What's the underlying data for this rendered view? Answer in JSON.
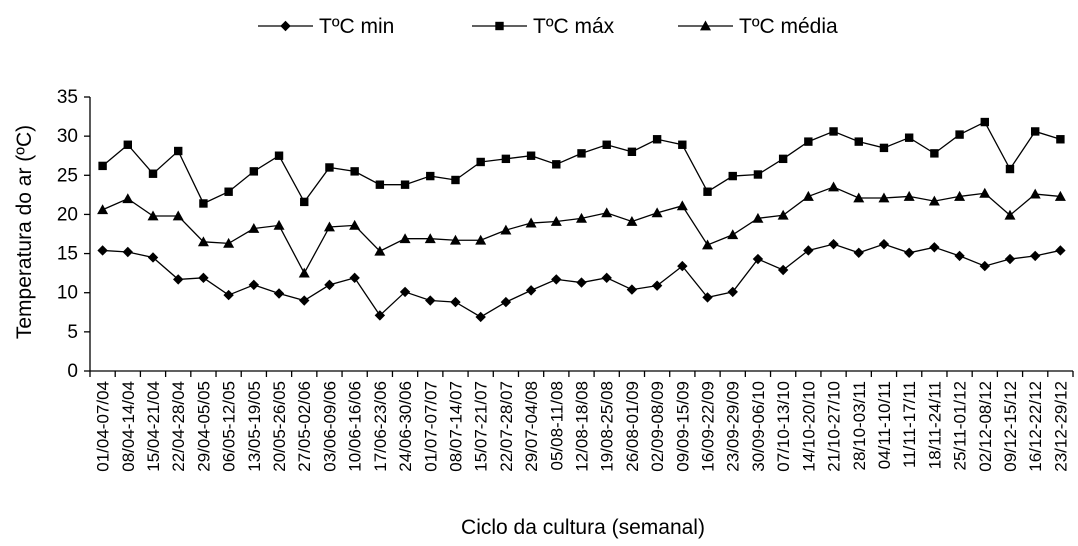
{
  "chart_data": {
    "type": "line",
    "xlabel": "Ciclo da cultura (semanal)",
    "ylabel": "Temperatura do ar (ºC)",
    "ylim": [
      0,
      35
    ],
    "yticks": [
      0,
      5,
      10,
      15,
      20,
      25,
      30,
      35
    ],
    "grid": false,
    "legend_position": "top",
    "categories": [
      "01/04-07/04",
      "08/04-14/04",
      "15/04-21/04",
      "22/04-28/04",
      "29/04-05/05",
      "06/05-12/05",
      "13/05-19/05",
      "20/05-26/05",
      "27/05-02/06",
      "03/06-09/06",
      "10/06-16/06",
      "17/06-23/06",
      "24/06-30/06",
      "01/07-07/07",
      "08/07-14/07",
      "15/07-21/07",
      "22/07-28/07",
      "29/07-04/08",
      "05/08-11/08",
      "12/08-18/08",
      "19/08-25/08",
      "26/08-01/09",
      "02/09-08/09",
      "09/09-15/09",
      "16/09-22/09",
      "23/09-29/09",
      "30/09-06/10",
      "07/10-13/10",
      "14/10-20/10",
      "21/10-27/10",
      "28/10-03/11",
      "04/11-10/11",
      "11/11-17/11",
      "18/11-24/11",
      "25/11-01/12",
      "02/12-08/12",
      "09/12-15/12",
      "16/12-22/12",
      "23/12-29/12"
    ],
    "series": [
      {
        "name": "TºC min",
        "marker": "diamond",
        "values": [
          15.4,
          15.2,
          14.5,
          11.7,
          11.9,
          9.7,
          11.0,
          9.9,
          9.0,
          11.0,
          11.9,
          7.1,
          10.1,
          9.0,
          8.8,
          6.9,
          8.8,
          10.3,
          11.7,
          11.3,
          11.9,
          10.4,
          10.9,
          13.4,
          9.4,
          10.1,
          14.3,
          12.9,
          15.4,
          16.2,
          15.1,
          16.2,
          15.1,
          15.8,
          14.7,
          13.4,
          14.3,
          14.7,
          15.4
        ]
      },
      {
        "name": "TºC máx",
        "marker": "square",
        "values": [
          26.2,
          28.9,
          25.2,
          28.1,
          21.4,
          22.9,
          25.5,
          27.5,
          21.6,
          26.0,
          25.5,
          23.8,
          23.8,
          24.9,
          24.4,
          26.7,
          27.1,
          27.5,
          26.4,
          27.8,
          28.9,
          28.0,
          29.6,
          28.9,
          22.9,
          24.9,
          25.1,
          27.1,
          29.3,
          30.6,
          29.3,
          28.5,
          29.8,
          27.8,
          30.2,
          31.8,
          25.8,
          30.6,
          29.6
        ]
      },
      {
        "name": "TºC média",
        "marker": "triangle",
        "values": [
          20.6,
          22.0,
          19.8,
          19.8,
          16.5,
          16.3,
          18.2,
          18.6,
          12.5,
          18.4,
          18.6,
          15.3,
          16.9,
          16.9,
          16.7,
          16.7,
          18.0,
          18.9,
          19.1,
          19.5,
          20.2,
          19.1,
          20.2,
          21.1,
          16.1,
          17.4,
          19.5,
          19.9,
          22.3,
          23.5,
          22.1,
          22.1,
          22.3,
          21.7,
          22.3,
          22.7,
          19.9,
          22.6,
          22.3
        ]
      }
    ]
  }
}
